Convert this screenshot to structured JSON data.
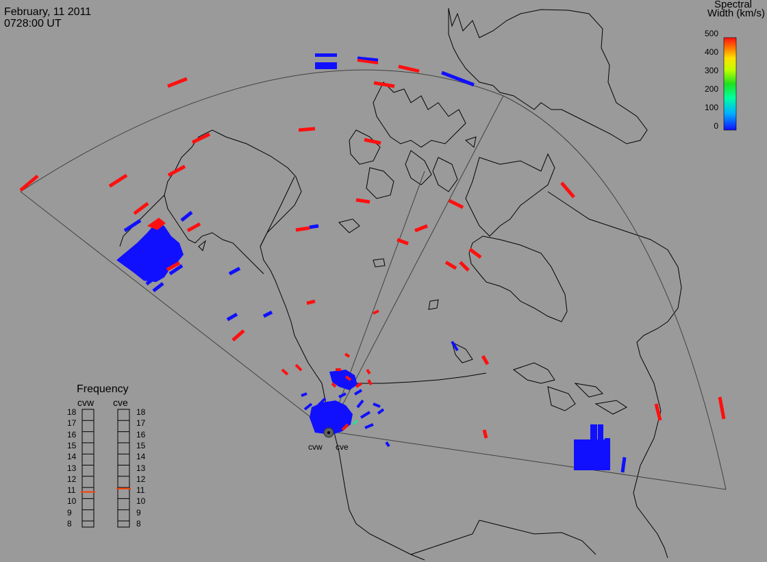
{
  "header": {
    "date": "February, 11 2011",
    "time": "0728:00 UT"
  },
  "colorbar": {
    "title_line1": "Spectral",
    "title_line2": "Width (km/s)",
    "ticks": [
      "500",
      "400",
      "300",
      "200",
      "100",
      "0"
    ]
  },
  "frequency_panel": {
    "title": "Frequency",
    "left_label": "cvw",
    "right_label": "cve",
    "scale": [
      "18",
      "17",
      "16",
      "15",
      "14",
      "13",
      "12",
      "11",
      "10",
      "9",
      "8"
    ],
    "cvw_mhz": 10.6,
    "cve_mhz": 10.9
  },
  "radars": [
    {
      "code": "cvw"
    },
    {
      "code": "cve"
    }
  ],
  "colors": {
    "background": "#9a9a9a",
    "red": "#ff1010",
    "blue": "#1010ff",
    "marker": "#ff4000",
    "line": "#000000",
    "fov": "#404040"
  }
}
